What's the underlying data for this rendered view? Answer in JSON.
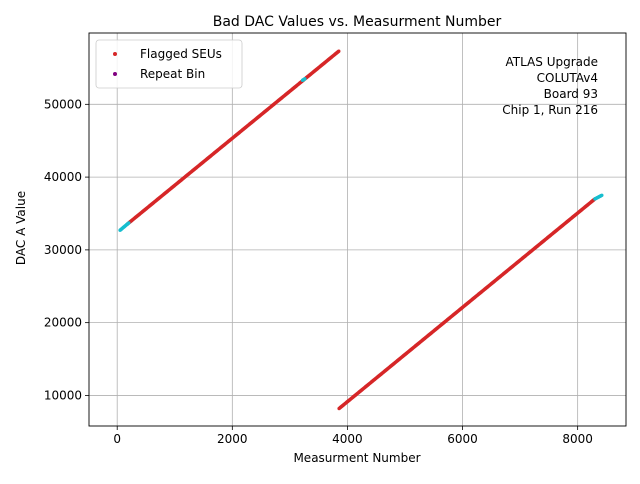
{
  "chart_data": {
    "type": "scatter",
    "title": "Bad DAC Values vs. Measurment Number",
    "xlabel": "Measurment Number",
    "ylabel": "DAC A Value",
    "xlim": [
      -490,
      8840
    ],
    "ylim": [
      5800,
      59800
    ],
    "xticks": [
      0,
      2000,
      4000,
      6000,
      8000
    ],
    "yticks": [
      10000,
      20000,
      30000,
      40000,
      50000
    ],
    "grid": true,
    "legend_placement": "top-left",
    "annotation_lines": [
      "ATLAS Upgrade",
      "COLUTAv4 ",
      "Board 93",
      "Chip 1, Run 216"
    ],
    "series": [
      {
        "name": "Flagged SEUs",
        "color": "#d62728",
        "segments": [
          {
            "x": [
              170,
              3850
            ],
            "y": [
              33500,
              57300
            ]
          },
          {
            "x": [
              3855,
              8300
            ],
            "y": [
              8200,
              37000
            ]
          }
        ]
      },
      {
        "name": "Repeat Bin",
        "color": "#800080",
        "segments": []
      },
      {
        "name": "",
        "color": "#17becf",
        "segments": [
          {
            "x": [
              50,
              200
            ],
            "y": [
              32700,
              33700
            ]
          },
          {
            "x": [
              3220,
              3260
            ],
            "y": [
              53300,
              53500
            ]
          },
          {
            "x": [
              8300,
              8420
            ],
            "y": [
              37000,
              37500
            ]
          }
        ]
      }
    ]
  }
}
